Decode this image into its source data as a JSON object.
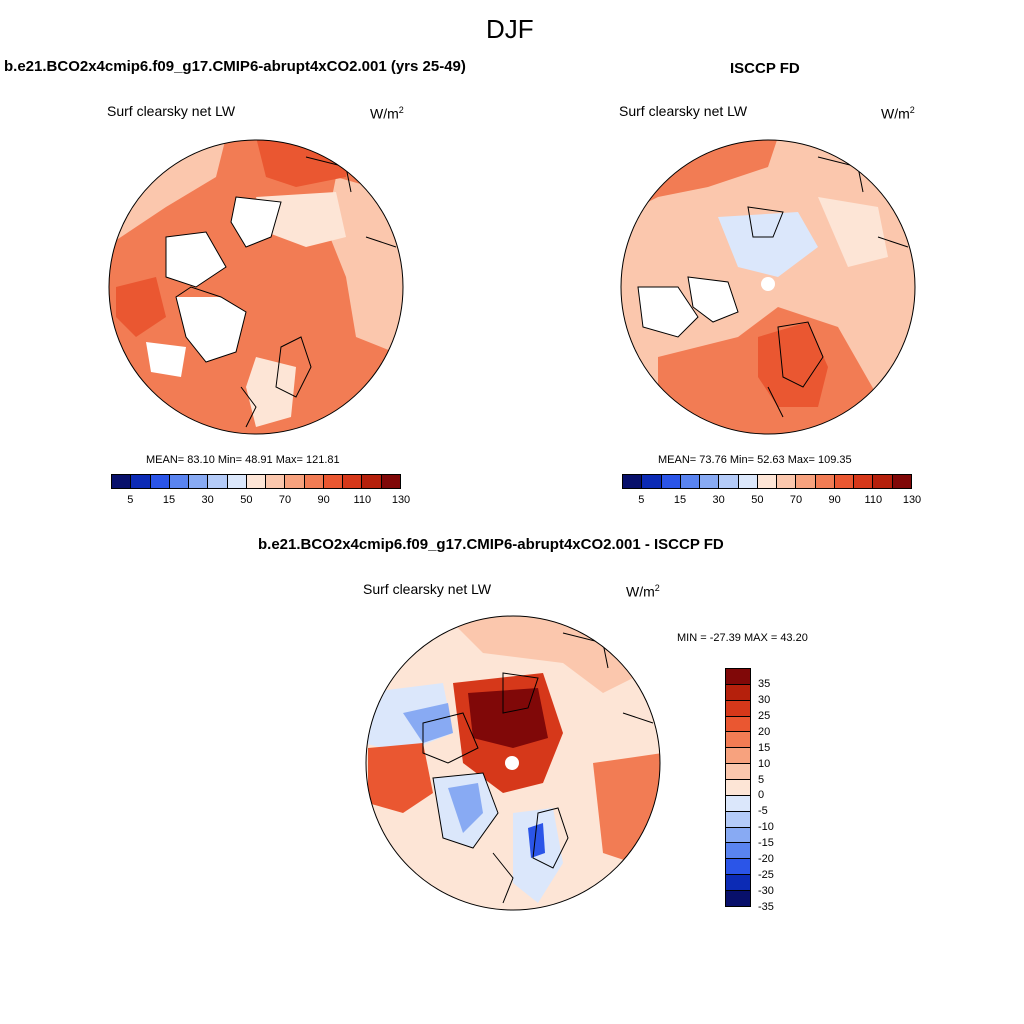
{
  "figure": {
    "title": "DJF"
  },
  "panels": {
    "model": {
      "title": "b.e21.BCO2x4cmip6.f09_g17.CMIP6-abrupt4xCO2.001 (yrs 25-49)",
      "variable": "Surf clearsky net LW",
      "units_base": "W/m",
      "units_exp": "2",
      "stats": {
        "mean_label": "MEAN=",
        "mean": "83.10",
        "min_label": "Min=",
        "min": "48.91",
        "max_label": "Max=",
        "max": "121.81"
      }
    },
    "obs": {
      "title": "ISCCP FD",
      "variable": "Surf clearsky net LW",
      "units_base": "W/m",
      "units_exp": "2",
      "stats": {
        "mean_label": "MEAN=",
        "mean": "73.76",
        "min_label": "Min=",
        "min": "52.63",
        "max_label": "Max=",
        "max": "109.35"
      }
    },
    "diff": {
      "title": "b.e21.BCO2x4cmip6.f09_g17.CMIP6-abrupt4xCO2.001 - ISCCP FD",
      "variable": "Surf clearsky net LW",
      "units_base": "W/m",
      "units_exp": "2",
      "minmax_text": "MIN = -27.39 MAX =  43.20"
    }
  },
  "colorbar_abs": {
    "colors": [
      "#08106b",
      "#0c2bb5",
      "#2b55e8",
      "#5a84f0",
      "#88aaf3",
      "#b4cbf8",
      "#dbe7fb",
      "#fde5d6",
      "#fbc7ad",
      "#f7a27e",
      "#f27c54",
      "#ea5731",
      "#d6381a",
      "#b5200c",
      "#800808"
    ],
    "labels": [
      "5",
      "15",
      "30",
      "50",
      "70",
      "90",
      "110",
      "130"
    ]
  },
  "colorbar_diff": {
    "colors": [
      "#800808",
      "#b5200c",
      "#d6381a",
      "#ea5731",
      "#f27c54",
      "#f7a27e",
      "#fbc7ad",
      "#fde5d6",
      "#dbe7fb",
      "#b4cbf8",
      "#88aaf3",
      "#5a84f0",
      "#2b55e8",
      "#0c2bb5",
      "#08106b"
    ],
    "labels": [
      "35",
      "30",
      "25",
      "20",
      "15",
      "10",
      "5",
      "0",
      "-5",
      "-10",
      "-15",
      "-20",
      "-25",
      "-30",
      "-35"
    ]
  },
  "map_colors": {
    "land": "#ffffff",
    "deep": "#d6381a",
    "mid": "#ea5731",
    "light": "#f27c54",
    "pale": "#fbc7ad",
    "paler": "#fde5d6",
    "blue_pale": "#dbe7fb",
    "blue": "#88aaf3",
    "blue_deep": "#2b55e8",
    "darkred": "#800808",
    "hole": "#ffffff"
  }
}
